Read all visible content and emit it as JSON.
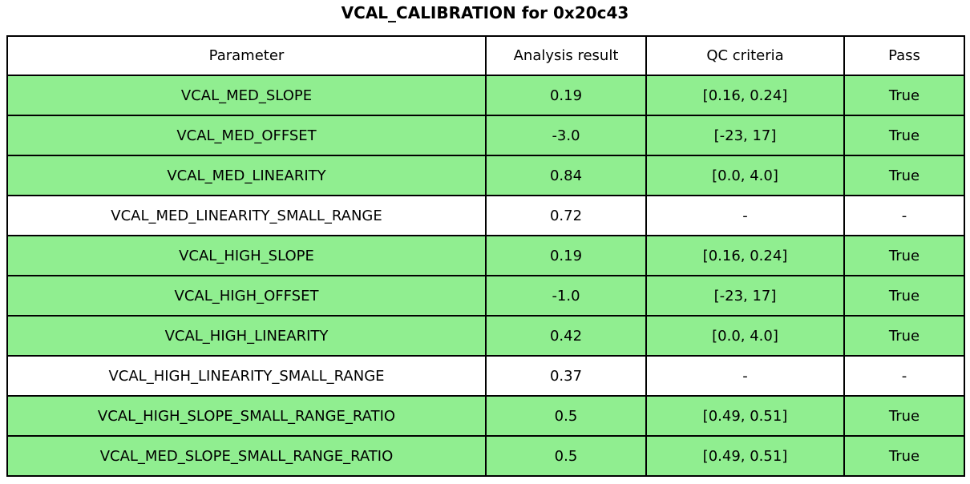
{
  "title": "VCAL_CALIBRATION for 0x20c43",
  "colors": {
    "row_highlight": "#90ee90",
    "row_plain": "#ffffff",
    "border": "#000000",
    "text": "#000000",
    "background": "#ffffff"
  },
  "chart_data": {
    "type": "table",
    "title": "VCAL_CALIBRATION for 0x20c43",
    "columns": [
      "Parameter",
      "Analysis result",
      "QC criteria",
      "Pass"
    ],
    "rows": [
      {
        "parameter": "VCAL_MED_SLOPE",
        "result": "0.19",
        "criteria": "[0.16, 0.24]",
        "pass": "True",
        "highlight": true
      },
      {
        "parameter": "VCAL_MED_OFFSET",
        "result": "-3.0",
        "criteria": "[-23, 17]",
        "pass": "True",
        "highlight": true
      },
      {
        "parameter": "VCAL_MED_LINEARITY",
        "result": "0.84",
        "criteria": "[0.0, 4.0]",
        "pass": "True",
        "highlight": true
      },
      {
        "parameter": "VCAL_MED_LINEARITY_SMALL_RANGE",
        "result": "0.72",
        "criteria": "-",
        "pass": "-",
        "highlight": false
      },
      {
        "parameter": "VCAL_HIGH_SLOPE",
        "result": "0.19",
        "criteria": "[0.16, 0.24]",
        "pass": "True",
        "highlight": true
      },
      {
        "parameter": "VCAL_HIGH_OFFSET",
        "result": "-1.0",
        "criteria": "[-23, 17]",
        "pass": "True",
        "highlight": true
      },
      {
        "parameter": "VCAL_HIGH_LINEARITY",
        "result": "0.42",
        "criteria": "[0.0, 4.0]",
        "pass": "True",
        "highlight": true
      },
      {
        "parameter": "VCAL_HIGH_LINEARITY_SMALL_RANGE",
        "result": "0.37",
        "criteria": "-",
        "pass": "-",
        "highlight": false
      },
      {
        "parameter": "VCAL_HIGH_SLOPE_SMALL_RANGE_RATIO",
        "result": "0.5",
        "criteria": "[0.49, 0.51]",
        "pass": "True",
        "highlight": true
      },
      {
        "parameter": "VCAL_MED_SLOPE_SMALL_RANGE_RATIO",
        "result": "0.5",
        "criteria": "[0.49, 0.51]",
        "pass": "True",
        "highlight": true
      }
    ]
  }
}
